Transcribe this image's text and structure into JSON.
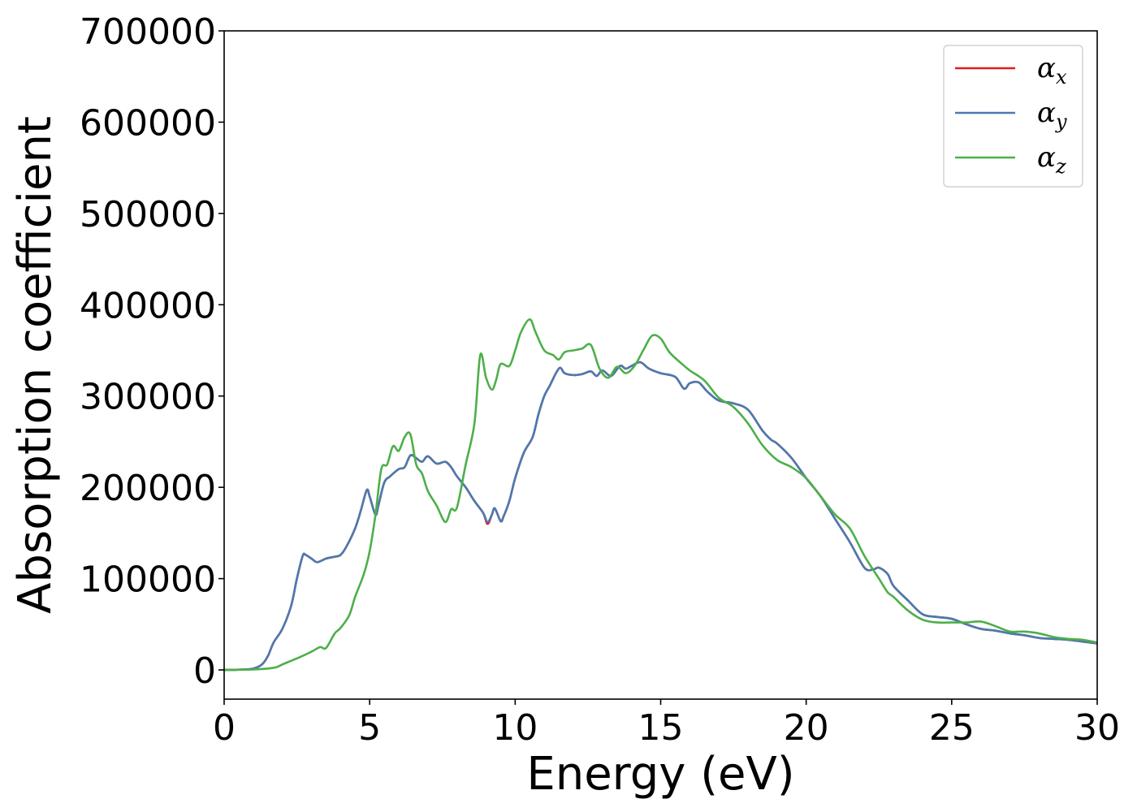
{
  "chart_data": {
    "type": "line",
    "title": "",
    "xlabel": "Energy (eV)",
    "ylabel": "Absorption coefficient",
    "xlim": [
      0,
      30
    ],
    "ylim": [
      -32000,
      700000
    ],
    "xticks": [
      0,
      5,
      10,
      15,
      20,
      25,
      30
    ],
    "yticks": [
      0,
      100000,
      200000,
      300000,
      400000,
      500000,
      600000,
      700000
    ],
    "xtick_labels": [
      "0",
      "5",
      "10",
      "15",
      "20",
      "25",
      "30"
    ],
    "ytick_labels": [
      "0",
      "100000",
      "200000",
      "300000",
      "400000",
      "500000",
      "600000",
      "700000"
    ],
    "grid": false,
    "legend_position": "top-right",
    "series": [
      {
        "name": "α",
        "name_sub": "x",
        "color": "#e41a1c",
        "x": [
          0,
          0.5,
          1.0,
          1.3,
          1.5,
          1.7,
          2.0,
          2.3,
          2.5,
          2.7,
          2.8,
          3.0,
          3.2,
          3.5,
          3.8,
          4.0,
          4.2,
          4.5,
          4.7,
          4.9,
          5.0,
          5.2,
          5.3,
          5.5,
          5.7,
          6.0,
          6.2,
          6.4,
          6.6,
          6.8,
          7.0,
          7.3,
          7.6,
          7.8,
          8.0,
          8.3,
          8.6,
          8.9,
          9.05,
          9.2,
          9.3,
          9.5,
          9.6,
          9.8,
          10.0,
          10.3,
          10.6,
          10.8,
          11.0,
          11.2,
          11.4,
          11.55,
          11.7,
          12.0,
          12.3,
          12.6,
          12.8,
          13.0,
          13.3,
          13.6,
          13.8,
          14.0,
          14.3,
          14.6,
          15.0,
          15.5,
          15.8,
          16.0,
          16.3,
          16.6,
          17.0,
          17.5,
          18.0,
          18.5,
          18.8,
          19.0,
          19.5,
          20.0,
          20.5,
          21.0,
          21.5,
          22.0,
          22.3,
          22.5,
          22.8,
          23.0,
          23.5,
          24.0,
          24.5,
          25.0,
          25.5,
          26.0,
          26.5,
          27.0,
          27.5,
          28.0,
          28.5,
          29.0,
          29.5,
          30.0
        ],
        "y": [
          0,
          300,
          1500,
          6000,
          15000,
          30000,
          45000,
          70000,
          100000,
          125000,
          126000,
          122000,
          118000,
          122000,
          124000,
          126000,
          135000,
          155000,
          175000,
          197000,
          190000,
          170000,
          180000,
          205000,
          212000,
          220000,
          222000,
          235000,
          232000,
          228000,
          234000,
          226000,
          228000,
          222000,
          212000,
          200000,
          185000,
          172000,
          160000,
          170000,
          177000,
          163000,
          168000,
          185000,
          210000,
          238000,
          255000,
          280000,
          300000,
          312000,
          325000,
          331000,
          325000,
          323000,
          324000,
          327000,
          322000,
          328000,
          322000,
          333000,
          330000,
          333000,
          337000,
          330000,
          325000,
          321000,
          308000,
          314000,
          315000,
          305000,
          295000,
          292000,
          285000,
          262000,
          252000,
          248000,
          232000,
          210000,
          190000,
          165000,
          140000,
          112000,
          110000,
          112000,
          105000,
          92000,
          76000,
          61000,
          58000,
          56000,
          50000,
          45000,
          43000,
          40000,
          38000,
          35000,
          34000,
          33000,
          31000,
          29000
        ]
      },
      {
        "name": "α",
        "name_sub": "y",
        "color": "#4a7ab0",
        "x": [
          0,
          0.5,
          1.0,
          1.3,
          1.5,
          1.7,
          2.0,
          2.3,
          2.5,
          2.7,
          2.8,
          3.0,
          3.2,
          3.5,
          3.8,
          4.0,
          4.2,
          4.5,
          4.7,
          4.9,
          5.0,
          5.2,
          5.3,
          5.5,
          5.7,
          6.0,
          6.2,
          6.4,
          6.6,
          6.8,
          7.0,
          7.3,
          7.6,
          7.8,
          8.0,
          8.3,
          8.6,
          8.9,
          9.05,
          9.2,
          9.3,
          9.5,
          9.6,
          9.8,
          10.0,
          10.3,
          10.6,
          10.8,
          11.0,
          11.2,
          11.4,
          11.55,
          11.7,
          12.0,
          12.3,
          12.6,
          12.8,
          13.0,
          13.3,
          13.6,
          13.8,
          14.0,
          14.3,
          14.6,
          15.0,
          15.5,
          15.8,
          16.0,
          16.3,
          16.6,
          17.0,
          17.5,
          18.0,
          18.5,
          18.8,
          19.0,
          19.5,
          20.0,
          20.5,
          21.0,
          21.5,
          22.0,
          22.3,
          22.5,
          22.8,
          23.0,
          23.5,
          24.0,
          24.5,
          25.0,
          25.5,
          26.0,
          26.5,
          27.0,
          27.5,
          28.0,
          28.5,
          29.0,
          29.5,
          30.0
        ],
        "y": [
          0,
          300,
          1500,
          6000,
          15000,
          30000,
          45000,
          70000,
          100000,
          125000,
          126000,
          122000,
          118000,
          122000,
          124000,
          126000,
          135000,
          155000,
          175000,
          197000,
          190000,
          170000,
          180000,
          205000,
          212000,
          220000,
          222000,
          235000,
          232000,
          228000,
          234000,
          226000,
          228000,
          222000,
          212000,
          200000,
          185000,
          172000,
          162000,
          170000,
          177000,
          163000,
          168000,
          185000,
          210000,
          238000,
          255000,
          280000,
          300000,
          312000,
          325000,
          331000,
          325000,
          323000,
          324000,
          327000,
          322000,
          328000,
          322000,
          333000,
          330000,
          333000,
          337000,
          330000,
          325000,
          321000,
          308000,
          314000,
          315000,
          305000,
          295000,
          292000,
          285000,
          262000,
          252000,
          248000,
          232000,
          210000,
          190000,
          165000,
          140000,
          112000,
          110000,
          112000,
          105000,
          92000,
          76000,
          61000,
          58000,
          56000,
          50000,
          45000,
          43000,
          40000,
          38000,
          35000,
          34000,
          33000,
          31000,
          29000
        ]
      },
      {
        "name": "α",
        "name_sub": "z",
        "color": "#4daf4a",
        "x": [
          0,
          0.5,
          1.0,
          1.5,
          1.8,
          2.0,
          2.3,
          2.6,
          3.0,
          3.3,
          3.5,
          3.8,
          4.0,
          4.3,
          4.5,
          4.8,
          5.0,
          5.2,
          5.4,
          5.6,
          5.8,
          6.0,
          6.2,
          6.4,
          6.6,
          6.8,
          7.0,
          7.3,
          7.6,
          7.8,
          8.0,
          8.3,
          8.6,
          8.8,
          9.0,
          9.2,
          9.35,
          9.5,
          9.8,
          10.0,
          10.2,
          10.5,
          10.7,
          11.0,
          11.3,
          11.5,
          11.7,
          12.0,
          12.3,
          12.6,
          12.9,
          13.2,
          13.5,
          13.8,
          14.1,
          14.4,
          14.7,
          15.0,
          15.3,
          15.7,
          16.0,
          16.5,
          17.0,
          17.5,
          18.0,
          18.5,
          19.0,
          19.5,
          20.0,
          20.5,
          21.0,
          21.5,
          22.0,
          22.5,
          22.8,
          23.0,
          23.5,
          24.0,
          24.5,
          25.0,
          25.5,
          26.0,
          26.5,
          27.0,
          27.5,
          28.0,
          28.5,
          29.0,
          29.5,
          30.0
        ],
        "y": [
          0,
          200,
          500,
          1500,
          3000,
          6000,
          10000,
          14000,
          20000,
          25000,
          24000,
          40000,
          46000,
          60000,
          80000,
          105000,
          130000,
          170000,
          220000,
          225000,
          245000,
          240000,
          255000,
          258000,
          225000,
          215000,
          196000,
          180000,
          162000,
          176000,
          178000,
          225000,
          270000,
          345000,
          320000,
          307000,
          318000,
          335000,
          333000,
          350000,
          370000,
          384000,
          370000,
          350000,
          345000,
          340000,
          348000,
          350000,
          352000,
          356000,
          330000,
          320000,
          332000,
          325000,
          333000,
          350000,
          366000,
          363000,
          348000,
          336000,
          328000,
          317000,
          298000,
          288000,
          270000,
          246000,
          230000,
          222000,
          210000,
          190000,
          170000,
          155000,
          125000,
          100000,
          85000,
          80000,
          65000,
          55000,
          52000,
          52000,
          52000,
          53000,
          48000,
          42000,
          42000,
          40000,
          36000,
          34000,
          33000,
          30000
        ]
      }
    ]
  }
}
